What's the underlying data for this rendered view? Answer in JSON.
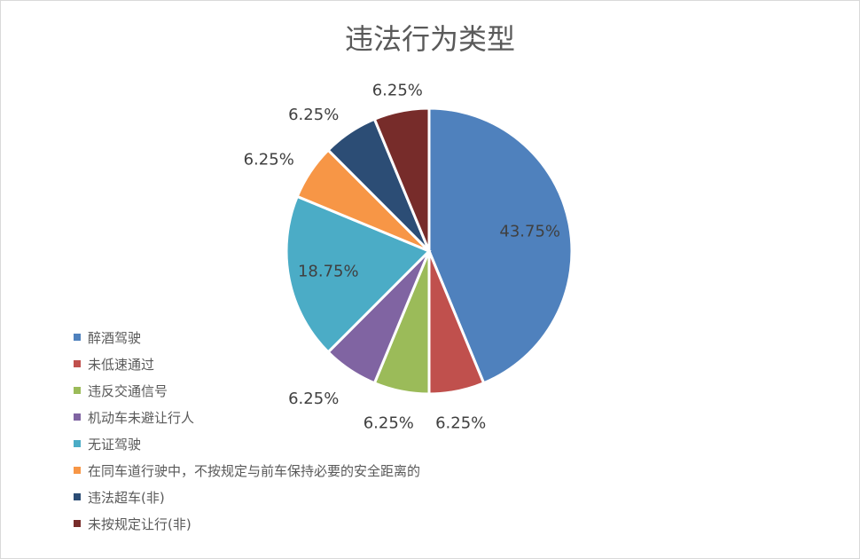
{
  "chart_data": {
    "type": "pie",
    "title": "违法行为类型",
    "legend_position": "left",
    "categories": [
      "醉酒驾驶",
      "未低速通过",
      "违反交通信号",
      "机动车未避让行人",
      "无证驾驶",
      "在同车道行驶中，不按规定与前车保持必要的安全距离的",
      "违法超车(非)",
      "未按规定让行(非)"
    ],
    "values": [
      43.75,
      6.25,
      6.25,
      6.25,
      18.75,
      6.25,
      6.25,
      6.25
    ],
    "labels": [
      "43.75%",
      "6.25%",
      "6.25%",
      "6.25%",
      "18.75%",
      "6.25%",
      "6.25%",
      "6.25%"
    ],
    "colors": [
      "#4f81bd",
      "#c0504d",
      "#9bbb59",
      "#8064a2",
      "#4bacc6",
      "#f79646",
      "#2c4d75",
      "#772c2a"
    ]
  }
}
